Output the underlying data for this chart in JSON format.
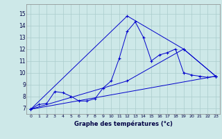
{
  "xlabel": "Graphe des températures (°c)",
  "bg_color": "#cde8e8",
  "line_color": "#0000cc",
  "grid_color": "#aacccc",
  "xlim": [
    -0.5,
    23.5
  ],
  "ylim": [
    6.5,
    15.8
  ],
  "yticks": [
    7,
    8,
    9,
    10,
    11,
    12,
    13,
    14,
    15
  ],
  "xticks": [
    0,
    1,
    2,
    3,
    4,
    5,
    6,
    7,
    8,
    9,
    10,
    11,
    12,
    13,
    14,
    15,
    16,
    17,
    18,
    19,
    20,
    21,
    22,
    23
  ],
  "series": [
    {
      "x": [
        0,
        1,
        2,
        3,
        4,
        5,
        6,
        7,
        8,
        9,
        10,
        11,
        12,
        13,
        14,
        15,
        16,
        17,
        18,
        19,
        20,
        21,
        22,
        23
      ],
      "y": [
        6.9,
        7.3,
        7.4,
        8.4,
        8.3,
        8.0,
        7.6,
        7.6,
        7.8,
        8.7,
        9.3,
        11.2,
        13.5,
        14.3,
        13.0,
        11.0,
        11.5,
        11.7,
        12.0,
        10.0,
        9.8,
        9.7,
        9.6,
        9.7
      ]
    },
    {
      "x": [
        0,
        23
      ],
      "y": [
        6.9,
        9.7
      ]
    },
    {
      "x": [
        0,
        12,
        19,
        23
      ],
      "y": [
        6.9,
        9.3,
        12.0,
        9.7
      ]
    },
    {
      "x": [
        0,
        12,
        19,
        23
      ],
      "y": [
        6.9,
        14.8,
        12.0,
        9.7
      ]
    }
  ]
}
